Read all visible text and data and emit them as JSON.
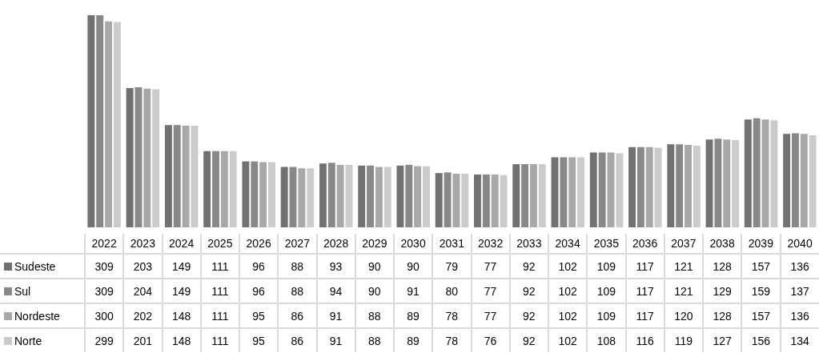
{
  "chart_data": {
    "type": "bar",
    "categories": [
      "2022",
      "2023",
      "2024",
      "2025",
      "2026",
      "2027",
      "2028",
      "2029",
      "2030",
      "2031",
      "2032",
      "2033",
      "2034",
      "2035",
      "2036",
      "2037",
      "2038",
      "2039",
      "2040"
    ],
    "series": [
      {
        "name": "Sudeste",
        "color": "#717171",
        "values": [
          309,
          203,
          149,
          111,
          96,
          88,
          93,
          90,
          90,
          79,
          77,
          92,
          102,
          109,
          117,
          121,
          128,
          157,
          136
        ]
      },
      {
        "name": "Sul",
        "color": "#888888",
        "values": [
          309,
          204,
          149,
          111,
          96,
          88,
          94,
          90,
          91,
          80,
          77,
          92,
          102,
          109,
          117,
          121,
          129,
          159,
          137
        ]
      },
      {
        "name": "Nordeste",
        "color": "#a8a8a8",
        "values": [
          300,
          202,
          148,
          111,
          95,
          86,
          91,
          88,
          89,
          78,
          77,
          92,
          102,
          109,
          117,
          120,
          128,
          157,
          136
        ]
      },
      {
        "name": "Norte",
        "color": "#cbcbcb",
        "values": [
          299,
          201,
          148,
          111,
          95,
          86,
          91,
          88,
          89,
          78,
          76,
          92,
          102,
          108,
          116,
          119,
          127,
          156,
          134
        ]
      }
    ],
    "data_labels": true,
    "legend": "bottom left",
    "grid": false
  }
}
